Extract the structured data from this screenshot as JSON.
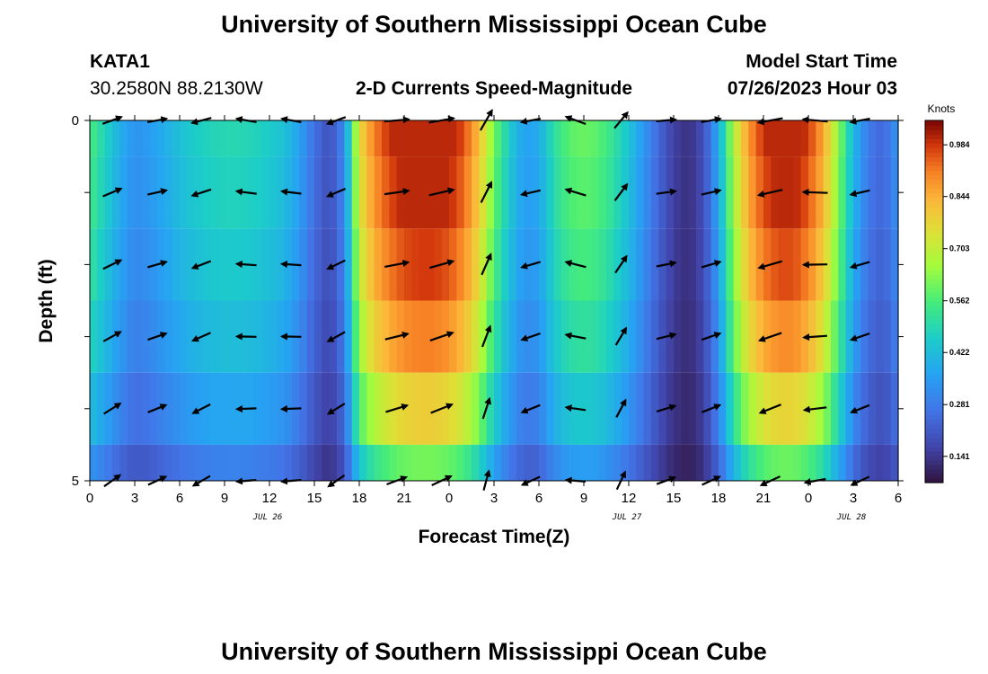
{
  "header": {
    "title": "University of Southern Mississippi Ocean Cube",
    "station": "KATA1",
    "coords": "30.2580N  88.2130W",
    "plot_title": "2-D Currents Speed-Magnitude",
    "model_start_label": "Model Start Time",
    "model_start_value": "07/26/2023 Hour 03"
  },
  "footer": {
    "title": "University of Southern Mississippi Ocean Cube"
  },
  "chart_data": {
    "type": "heatmap",
    "title": "2-D Currents Speed-Magnitude",
    "xlabel": "Forecast Time(Z)",
    "ylabel": "Depth (ft)",
    "x_ticks": [
      "0",
      "3",
      "6",
      "9",
      "12",
      "15",
      "18",
      "21",
      "0",
      "3",
      "6",
      "9",
      "12",
      "15",
      "18",
      "21",
      "0",
      "3",
      "6"
    ],
    "x_range_hours": [
      0,
      54
    ],
    "date_labels": [
      {
        "text": "JUL 26",
        "hour": 12
      },
      {
        "text": "JUL 27",
        "hour": 36
      },
      {
        "text": "JUL 28",
        "hour": 51
      }
    ],
    "y_ticks": [
      "0",
      "5"
    ],
    "y_range": [
      0,
      5
    ],
    "depth_rows": [
      0,
      1,
      2,
      3,
      4,
      5
    ],
    "colorbar": {
      "units": "Knots",
      "ticks": [
        "0.984",
        "0.844",
        "0.703",
        "0.562",
        "0.422",
        "0.281",
        "0.141"
      ],
      "range": [
        0.07,
        1.05
      ],
      "tick_values": [
        0.984,
        0.844,
        0.703,
        0.562,
        0.422,
        0.281,
        0.141
      ]
    },
    "speed_profile_hourly": [
      0.5,
      0.42,
      0.33,
      0.27,
      0.29,
      0.33,
      0.37,
      0.4,
      0.42,
      0.43,
      0.43,
      0.42,
      0.4,
      0.37,
      0.3,
      0.2,
      0.13,
      0.25,
      0.7,
      0.85,
      0.93,
      0.98,
      1.0,
      1.0,
      0.97,
      0.9,
      0.76,
      0.55,
      0.4,
      0.3,
      0.32,
      0.45,
      0.52,
      0.54,
      0.52,
      0.46,
      0.38,
      0.28,
      0.18,
      0.1,
      0.07,
      0.13,
      0.32,
      0.62,
      0.82,
      0.93,
      0.98,
      0.98,
      0.92,
      0.8,
      0.58,
      0.35,
      0.22,
      0.18,
      0.28,
      0.5
    ],
    "depth_scale": [
      1.0,
      0.97,
      0.92,
      0.85,
      0.73,
      0.55
    ],
    "arrow_hours": [
      1,
      4,
      7,
      10,
      13,
      16,
      20,
      23,
      26,
      29,
      32,
      35,
      38,
      41,
      45,
      48,
      51
    ],
    "arrow_angle_profile_deg": [
      25,
      20,
      15,
      20,
      10,
      60,
      200,
      195,
      190,
      175,
      170,
      180,
      175,
      170,
      180,
      185,
      200,
      210,
      220,
      10,
      5,
      0,
      5,
      10,
      15,
      30,
      60,
      210,
      195,
      190,
      200,
      175,
      160,
      150,
      140,
      50,
      20,
      10,
      5,
      0,
      355,
      10,
      20,
      40,
      200,
      190,
      185,
      180,
      175,
      170,
      175,
      190,
      220,
      240,
      60,
      35
    ]
  }
}
